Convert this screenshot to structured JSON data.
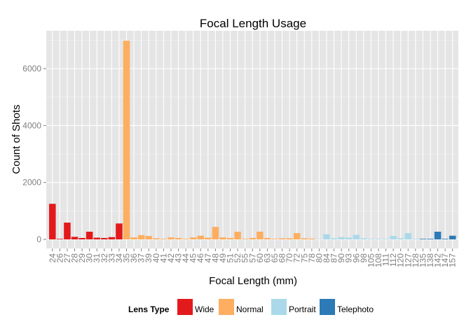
{
  "chart_data": {
    "type": "bar",
    "title": "Focal Length Usage",
    "xlabel": "Focal Length (mm)",
    "ylabel": "Count of Shots",
    "ylim": [
      0,
      7200
    ],
    "yticks": [
      0,
      2000,
      4000,
      6000
    ],
    "grid": true,
    "legend_position": "bottom",
    "legend_title": "Lens Type",
    "categories": [
      "24",
      "26",
      "27",
      "28",
      "29",
      "30",
      "31",
      "32",
      "33",
      "34",
      "35",
      "36",
      "37",
      "39",
      "40",
      "41",
      "42",
      "43",
      "44",
      "45",
      "46",
      "47",
      "48",
      "49",
      "51",
      "52",
      "55",
      "57",
      "60",
      "63",
      "65",
      "68",
      "70",
      "72",
      "75",
      "78",
      "80",
      "84",
      "87",
      "90",
      "93",
      "96",
      "98",
      "105",
      "108",
      "111",
      "112",
      "120",
      "127",
      "128",
      "135",
      "138",
      "142",
      "147",
      "157"
    ],
    "values": [
      1250,
      20,
      590,
      90,
      50,
      270,
      60,
      50,
      80,
      560,
      6980,
      70,
      150,
      120,
      40,
      20,
      70,
      50,
      20,
      70,
      130,
      60,
      440,
      70,
      50,
      270,
      20,
      50,
      270,
      50,
      20,
      40,
      40,
      220,
      40,
      30,
      10,
      180,
      40,
      80,
      60,
      160,
      40,
      20,
      20,
      20,
      120,
      40,
      220,
      20,
      20,
      20,
      270,
      20,
      130
    ],
    "lens_types": [
      "Wide",
      "Wide",
      "Wide",
      "Wide",
      "Wide",
      "Wide",
      "Wide",
      "Wide",
      "Wide",
      "Wide",
      "Normal",
      "Normal",
      "Normal",
      "Normal",
      "Normal",
      "Normal",
      "Normal",
      "Normal",
      "Normal",
      "Normal",
      "Normal",
      "Normal",
      "Normal",
      "Normal",
      "Normal",
      "Normal",
      "Normal",
      "Normal",
      "Normal",
      "Normal",
      "Normal",
      "Normal",
      "Normal",
      "Normal",
      "Normal",
      "Normal",
      "Portrait",
      "Portrait",
      "Portrait",
      "Portrait",
      "Portrait",
      "Portrait",
      "Portrait",
      "Portrait",
      "Portrait",
      "Portrait",
      "Portrait",
      "Portrait",
      "Portrait",
      "Portrait",
      "Telephoto",
      "Telephoto",
      "Telephoto",
      "Telephoto",
      "Telephoto"
    ],
    "series": [
      {
        "name": "Wide",
        "color": "#e31a1c"
      },
      {
        "name": "Normal",
        "color": "#fdae61"
      },
      {
        "name": "Portrait",
        "color": "#abd9e9"
      },
      {
        "name": "Telephoto",
        "color": "#2c7bb6"
      }
    ]
  }
}
